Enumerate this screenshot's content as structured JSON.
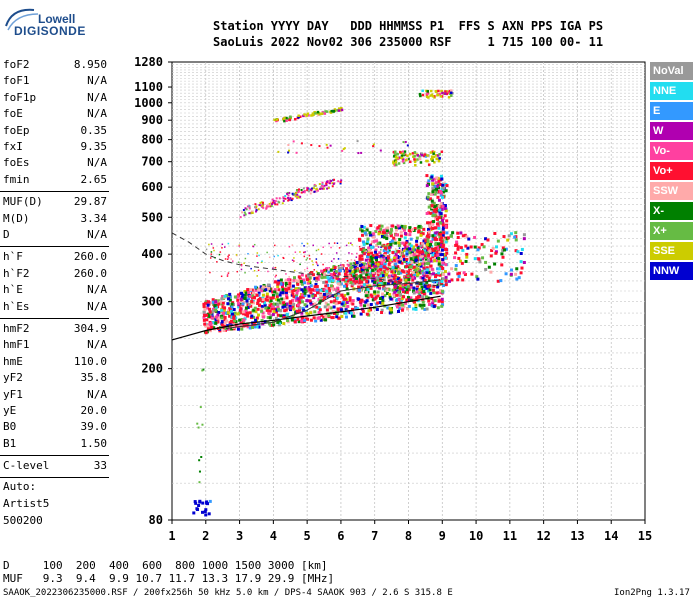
{
  "logo": {
    "brand": "Lowell",
    "product": "DIGISONDE"
  },
  "header": {
    "line1": "Station YYYY DAY   DDD HHMMSS P1  FFS S AXN PPS IGA PS",
    "line2": "SaoLuis 2022 Nov02 306 235000 RSF     1 715 100 00- 11"
  },
  "params": [
    {
      "name": "foF2",
      "value": "8.950"
    },
    {
      "name": "foF1",
      "value": "N/A"
    },
    {
      "name": "foF1p",
      "value": "N/A"
    },
    {
      "name": "foE",
      "value": "N/A"
    },
    {
      "name": "foEp",
      "value": "0.35"
    },
    {
      "name": "fxI",
      "value": "9.35"
    },
    {
      "name": "foEs",
      "value": "N/A"
    },
    {
      "name": "fmin",
      "value": "2.65"
    },
    {
      "name": "MUF(D)",
      "value": "29.87"
    },
    {
      "name": "M(D)",
      "value": "3.34"
    },
    {
      "name": "D",
      "value": "N/A"
    },
    {
      "name": "h`F",
      "value": "260.0"
    },
    {
      "name": "h`F2",
      "value": "260.0"
    },
    {
      "name": "h`E",
      "value": "N/A"
    },
    {
      "name": "h`Es",
      "value": "N/A"
    },
    {
      "name": "hmF2",
      "value": "304.9"
    },
    {
      "name": "hmF1",
      "value": "N/A"
    },
    {
      "name": "hmE",
      "value": "110.0"
    },
    {
      "name": "yF2",
      "value": "35.8"
    },
    {
      "name": "yF1",
      "value": "N/A"
    },
    {
      "name": "yE",
      "value": "20.0"
    },
    {
      "name": "B0",
      "value": "39.0"
    },
    {
      "name": "B1",
      "value": "1.50"
    }
  ],
  "clevel": {
    "name": "C-level",
    "value": "33"
  },
  "autoscale": {
    "line1": "Auto:",
    "line2": "Artist5",
    "line3": "500200"
  },
  "legend": [
    {
      "label": "NoVal",
      "color": "#999999"
    },
    {
      "label": "NNE",
      "color": "#22ddf0"
    },
    {
      "label": "E",
      "color": "#3399ff"
    },
    {
      "label": "W",
      "color": "#b000b0"
    },
    {
      "label": "Vo-",
      "color": "#ff40a0"
    },
    {
      "label": "Vo+",
      "color": "#ff1030"
    },
    {
      "label": "SSW",
      "color": "#ffaaaa"
    },
    {
      "label": "X-",
      "color": "#008000"
    },
    {
      "label": "X+",
      "color": "#66bb44"
    },
    {
      "label": "SSE",
      "color": "#cccc00"
    },
    {
      "label": "NNW",
      "color": "#0000d0"
    }
  ],
  "bottom": {
    "d_row": "D     100  200  400  600  800 1000 1500 3000 [km]",
    "muf_row": "MUF   9.3  9.4  9.9 10.7 11.7 13.3 17.9 29.9 [MHz]",
    "footer_left": "SAAOK_2022306235000.RSF / 200fx256h 50 kHz 5.0 km / DPS-4 SAAOK 903 / 2.6 S 315.8 E",
    "footer_right": "Ion2Png 1.3.17"
  },
  "chart_data": {
    "type": "scatter",
    "title": "",
    "xlabel": "",
    "ylabel": "",
    "xlim": [
      1,
      15
    ],
    "ylim": [
      80,
      1280
    ],
    "y_scale": "log",
    "x_ticks": [
      1,
      2,
      3,
      4,
      5,
      6,
      7,
      8,
      9,
      10,
      11,
      12,
      13,
      14,
      15
    ],
    "y_ticks": [
      80,
      200,
      300,
      400,
      500,
      600,
      700,
      800,
      900,
      1000,
      1100,
      1280
    ],
    "grid": "dashed",
    "legend_position": "right",
    "trace_profile": {
      "x": [
        1,
        2,
        3,
        4,
        5,
        6,
        7,
        8,
        8.95
      ],
      "y": [
        238,
        252,
        262,
        268,
        275,
        282,
        290,
        300,
        310
      ]
    },
    "ordinary_trace": {
      "x": [
        2.6,
        3,
        4,
        5,
        6,
        7,
        8,
        8.95
      ],
      "y": [
        255,
        258,
        265,
        285,
        320,
        330,
        335,
        342
      ]
    },
    "dashed_profile": {
      "x": [
        1,
        1.5,
        2,
        2.5,
        3,
        4,
        5,
        6,
        7,
        8,
        8.95
      ],
      "y": [
        455,
        430,
        400,
        385,
        375,
        365,
        355,
        350,
        345,
        335,
        330
      ]
    }
  }
}
